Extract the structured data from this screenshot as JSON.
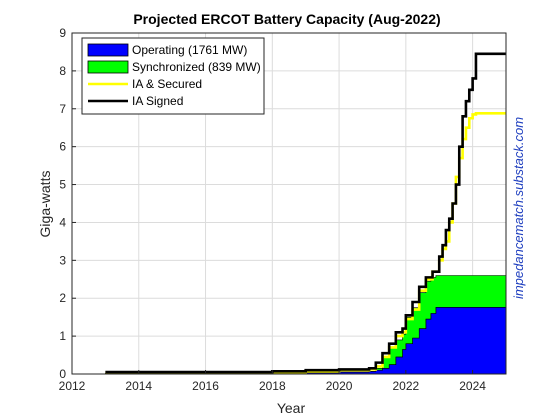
{
  "chart_data": {
    "type": "area",
    "title": "Projected ERCOT Battery Capacity (Aug-2022)",
    "xlabel": "Year",
    "ylabel": "Giga-watts",
    "xlim": [
      2012,
      2025
    ],
    "ylim": [
      0,
      9
    ],
    "xticks": [
      2012,
      2014,
      2016,
      2018,
      2020,
      2022,
      2024
    ],
    "yticks": [
      0,
      1,
      2,
      3,
      4,
      5,
      6,
      7,
      8,
      9
    ],
    "grid": true,
    "legend_position": "top-left",
    "annotation": "impedancematch.substack.com",
    "series": [
      {
        "name": "Operating (1761 MW)",
        "style": "stacked-area",
        "color": "#0000ff",
        "x": [
          2013.0,
          2018.0,
          2019.0,
          2020.0,
          2020.9,
          2021.1,
          2021.3,
          2021.5,
          2021.7,
          2021.9,
          2022.0,
          2022.2,
          2022.4,
          2022.6,
          2022.75,
          2022.9,
          2023.2,
          2025.0
        ],
        "y": [
          0.02,
          0.02,
          0.03,
          0.05,
          0.07,
          0.1,
          0.15,
          0.25,
          0.45,
          0.65,
          0.8,
          0.95,
          1.2,
          1.45,
          1.6,
          1.76,
          1.761,
          1.761
        ]
      },
      {
        "name": "Synchronized (839 MW)",
        "style": "stacked-area",
        "color": "#00ff00",
        "x": [
          2013.0,
          2018.0,
          2019.0,
          2020.0,
          2020.9,
          2021.1,
          2021.3,
          2021.5,
          2021.7,
          2021.9,
          2022.0,
          2022.2,
          2022.4,
          2022.6,
          2022.75,
          2022.9,
          2023.2,
          2025.0
        ],
        "y": [
          0.0,
          0.0,
          0.0,
          0.0,
          0.0,
          0.05,
          0.3,
          0.45,
          0.45,
          0.4,
          0.7,
          0.8,
          0.95,
          1.0,
          0.95,
          0.84,
          0.839,
          0.839
        ]
      },
      {
        "name": "IA & Secured",
        "style": "line",
        "color": "#ffff00",
        "x": [
          2013.0,
          2018.0,
          2019.0,
          2020.0,
          2020.9,
          2021.1,
          2021.3,
          2021.5,
          2021.7,
          2021.9,
          2022.0,
          2022.2,
          2022.4,
          2022.6,
          2022.8,
          2023.0,
          2023.1,
          2023.2,
          2023.3,
          2023.4,
          2023.5,
          2023.6,
          2023.7,
          2023.8,
          2023.9,
          2024.0,
          2024.1,
          2025.0
        ],
        "y": [
          0.03,
          0.05,
          0.07,
          0.1,
          0.12,
          0.2,
          0.45,
          0.7,
          1.0,
          1.1,
          1.45,
          1.7,
          2.2,
          2.5,
          2.7,
          3.0,
          3.3,
          3.5,
          4.0,
          4.5,
          5.2,
          5.7,
          6.2,
          6.5,
          6.75,
          6.85,
          6.88,
          6.88
        ]
      },
      {
        "name": "IA Signed",
        "style": "line",
        "color": "#000000",
        "x": [
          2013.0,
          2018.0,
          2019.0,
          2020.0,
          2020.9,
          2021.1,
          2021.3,
          2021.5,
          2021.7,
          2021.9,
          2022.0,
          2022.2,
          2022.4,
          2022.6,
          2022.8,
          2023.0,
          2023.1,
          2023.2,
          2023.3,
          2023.4,
          2023.5,
          2023.6,
          2023.7,
          2023.8,
          2023.9,
          2024.0,
          2024.1,
          2025.0
        ],
        "y": [
          0.05,
          0.07,
          0.1,
          0.12,
          0.15,
          0.3,
          0.55,
          0.8,
          1.1,
          1.2,
          1.55,
          1.9,
          2.3,
          2.55,
          2.7,
          3.1,
          3.4,
          3.8,
          4.1,
          4.5,
          5.0,
          6.0,
          6.8,
          7.2,
          7.5,
          7.8,
          8.45,
          8.45
        ]
      }
    ]
  }
}
